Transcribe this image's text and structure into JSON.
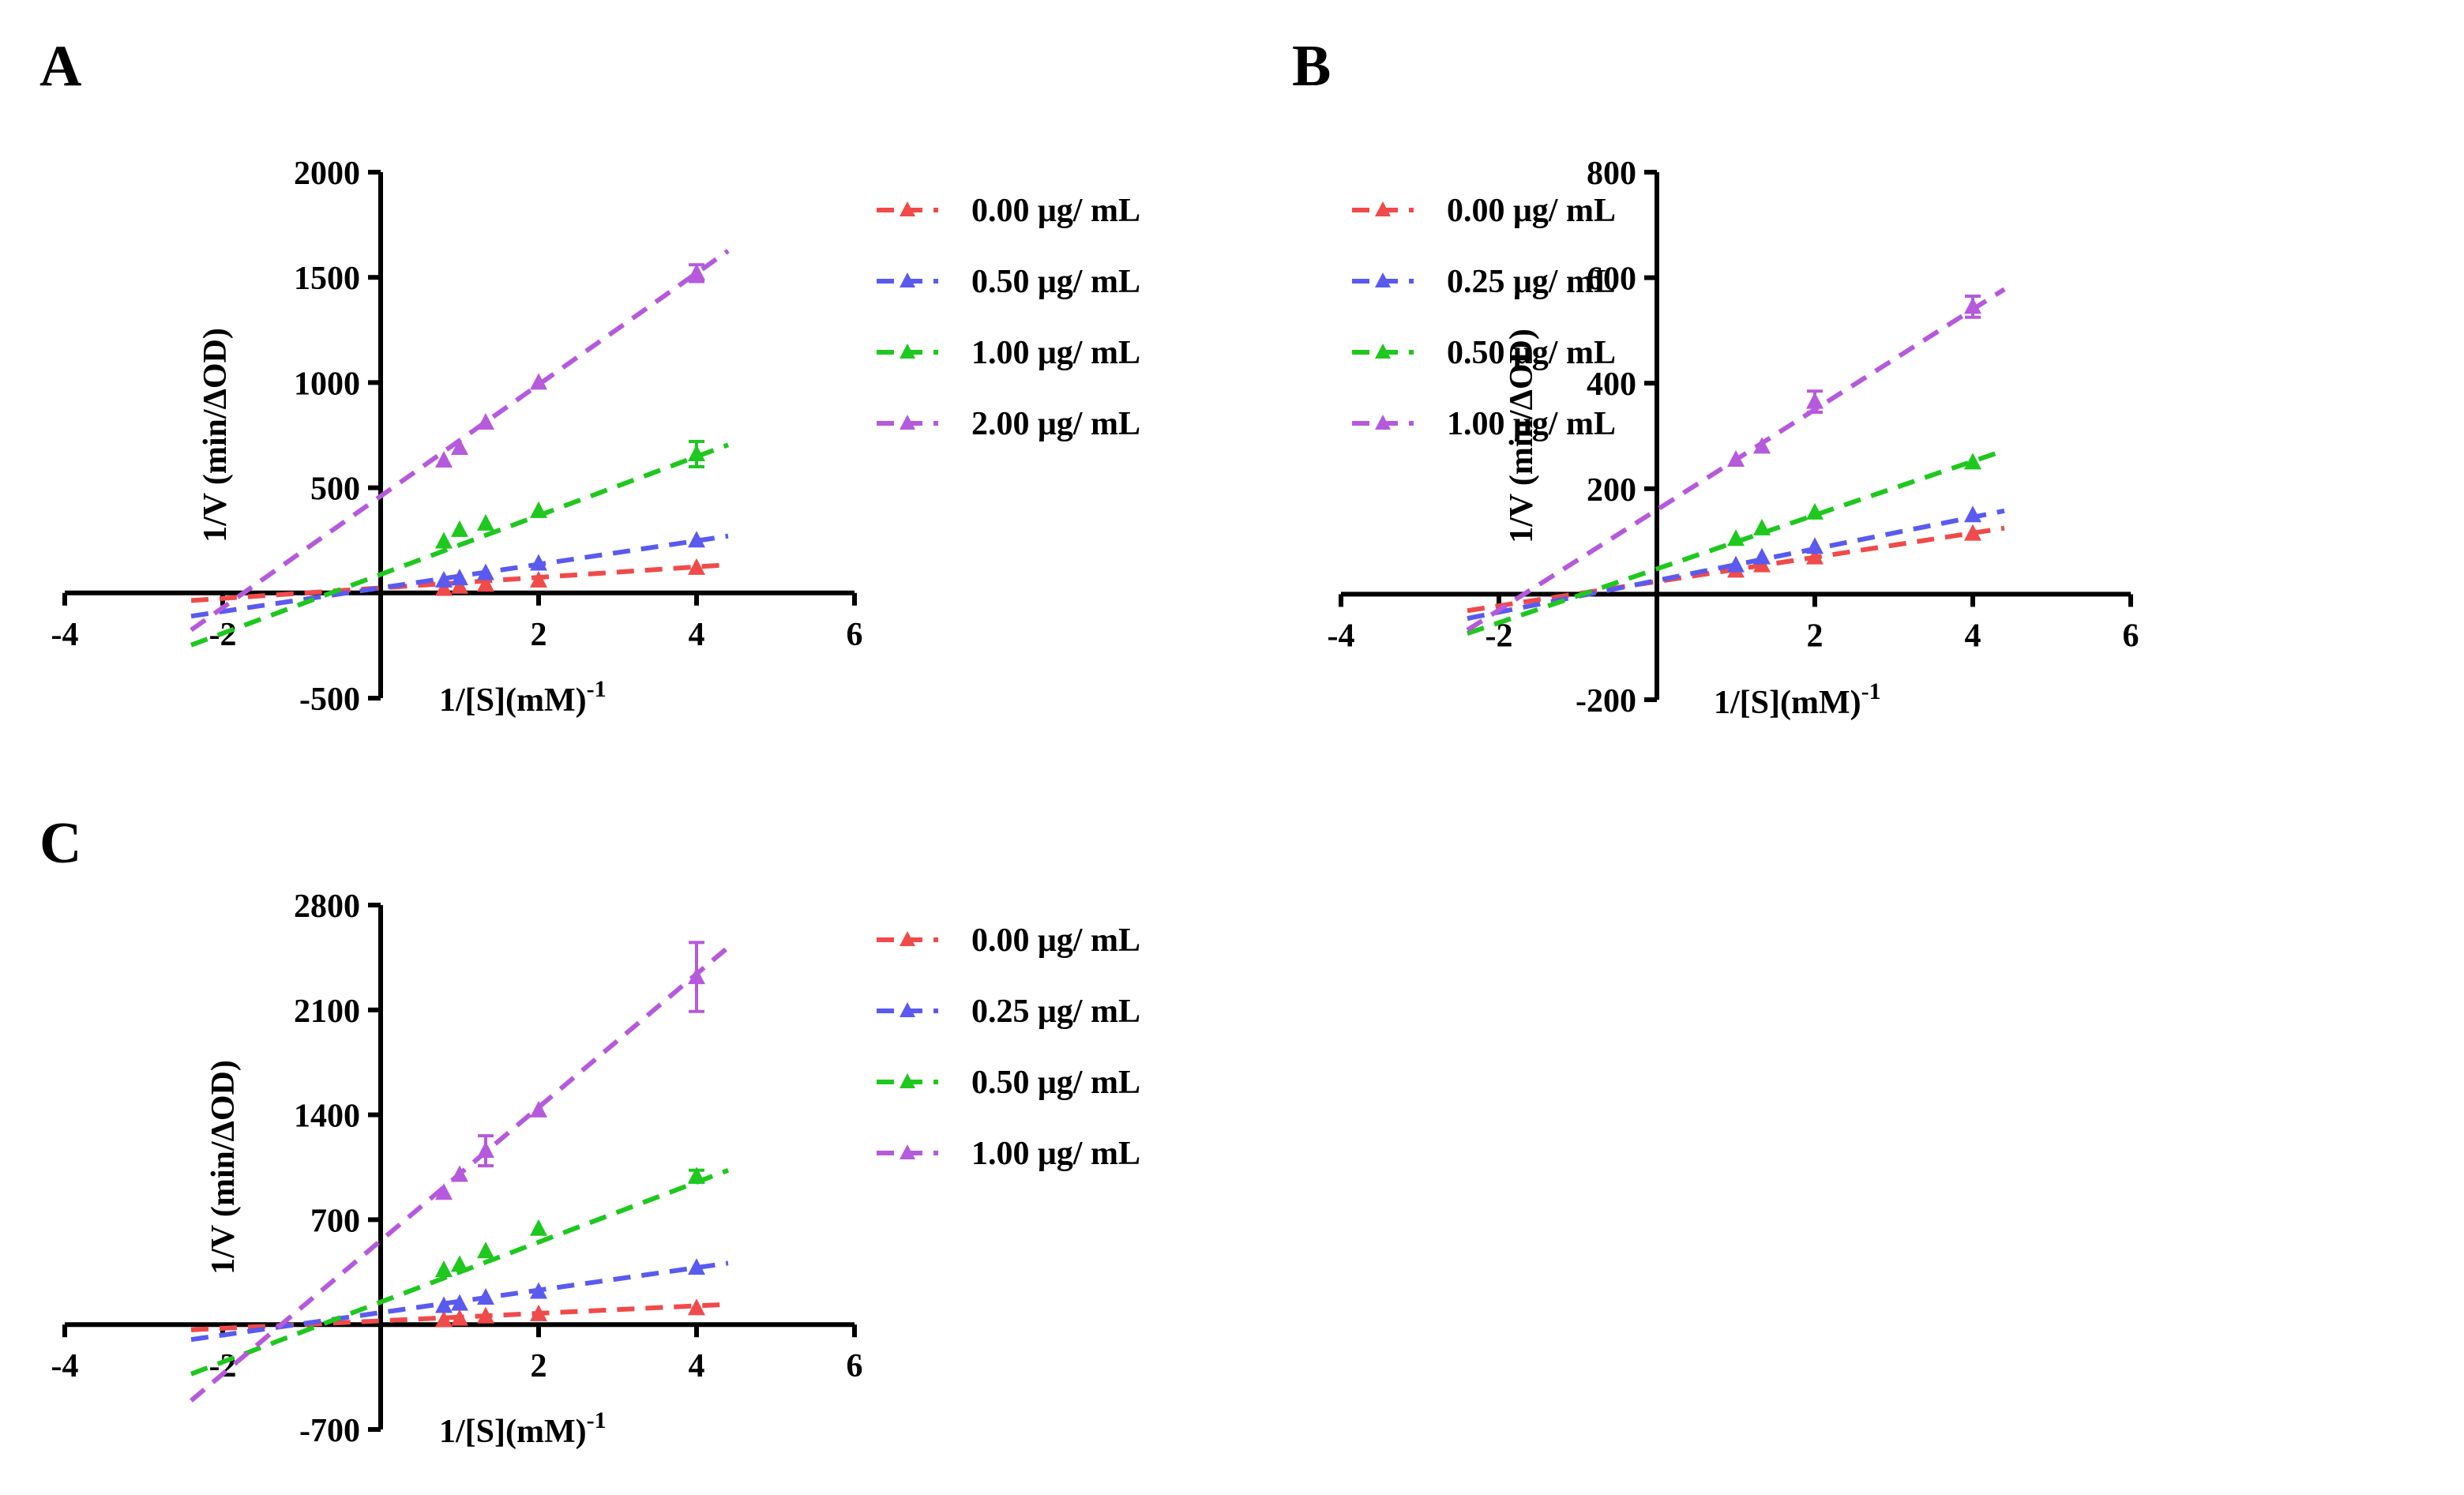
{
  "chart_data": [
    {
      "panel": "A",
      "type": "line",
      "xlabel": "1/[S](mM)",
      "xlabel_sup": "-1",
      "ylabel": "1/V (min/ΔOD)",
      "xlim": [
        -4,
        6
      ],
      "ylim": [
        -500,
        2000
      ],
      "xticks": [
        -4,
        -2,
        2,
        4,
        6
      ],
      "yticks": [
        -500,
        500,
        1000,
        1500,
        2000
      ],
      "yticklabels": [
        "-500",
        "500",
        "1000",
        "1500",
        "2000"
      ],
      "fit_range": [
        -2.4,
        4.4
      ],
      "series": [
        {
          "name": "0.00  μg/ mL",
          "color": "#f04a4a",
          "x": [
            0.8,
            1,
            1.33,
            2,
            4
          ],
          "y": [
            20,
            30,
            40,
            60,
            120
          ],
          "err": [
            0,
            0,
            0,
            0,
            0
          ],
          "slope": 25,
          "intercept": 24
        },
        {
          "name": "0.50  μg/ mL",
          "color": "#5a5af0",
          "x": [
            0.8,
            1,
            1.33,
            2,
            4
          ],
          "y": [
            60,
            70,
            95,
            140,
            250
          ],
          "err": [
            0,
            0,
            0,
            0,
            0
          ],
          "slope": 56,
          "intercept": 24
        },
        {
          "name": "1.00  μg/ mL",
          "color": "#1ec81e",
          "x": [
            0.8,
            1,
            1.33,
            2,
            4
          ],
          "y": [
            245,
            300,
            330,
            390,
            660
          ],
          "err": [
            0,
            0,
            0,
            0,
            60
          ],
          "slope": 140,
          "intercept": 88
        },
        {
          "name": "2.00 μg/ mL",
          "color": "#b55adc",
          "x": [
            0.8,
            1,
            1.33,
            2,
            4
          ],
          "y": [
            630,
            690,
            810,
            1000,
            1520
          ],
          "err": [
            0,
            0,
            0,
            0,
            40
          ],
          "slope": 265,
          "intercept": 460
        }
      ]
    },
    {
      "panel": "B",
      "type": "line",
      "xlabel": "1/[S](mM)",
      "xlabel_sup": "-1",
      "ylabel": "1/V (min/ΔOD)",
      "xlim": [
        -4,
        6
      ],
      "ylim": [
        -200,
        800
      ],
      "xticks": [
        -4,
        -2,
        2,
        4,
        6
      ],
      "yticks": [
        -200,
        200,
        400,
        600,
        800
      ],
      "yticklabels": [
        "-200",
        "200",
        "400",
        "600",
        "800"
      ],
      "fit_range": [
        -2.4,
        4.4
      ],
      "series": [
        {
          "name": "0.00 μg/ mL",
          "color": "#f04a4a",
          "x": [
            1,
            1.33,
            2,
            4
          ],
          "y": [
            45,
            55,
            70,
            115
          ],
          "err": [
            0,
            0,
            0,
            0
          ],
          "slope": 23,
          "intercept": 24
        },
        {
          "name": "0.25 μg/ mL",
          "color": "#5a5af0",
          "x": [
            1,
            1.33,
            2,
            4
          ],
          "y": [
            55,
            70,
            90,
            150
          ],
          "err": [
            0,
            0,
            0,
            0
          ],
          "slope": 30,
          "intercept": 26
        },
        {
          "name": "0.50 μg/ mL",
          "color": "#1ec81e",
          "x": [
            1,
            1.33,
            2,
            4
          ],
          "y": [
            105,
            125,
            155,
            250
          ],
          "err": [
            0,
            0,
            0,
            0
          ],
          "slope": 51,
          "intercept": 48
        },
        {
          "name": "1.00 μg/ mL",
          "color": "#b55adc",
          "x": [
            1,
            1.33,
            2,
            4
          ],
          "y": [
            255,
            280,
            365,
            545
          ],
          "err": [
            0,
            0,
            20,
            20
          ],
          "slope": 95,
          "intercept": 160
        }
      ]
    },
    {
      "panel": "C",
      "type": "line",
      "xlabel": "1/[S](mM)",
      "xlabel_sup": "-1",
      "ylabel": "1/V (min/ΔOD)",
      "xlim": [
        -4,
        6
      ],
      "ylim": [
        -700,
        2800
      ],
      "xticks": [
        -4,
        -2,
        2,
        4,
        6
      ],
      "yticks": [
        -700,
        700,
        1400,
        2100,
        2800
      ],
      "yticklabels": [
        "-700",
        "700",
        "1400",
        "2100",
        "2800"
      ],
      "fit_range": [
        -2.4,
        4.4
      ],
      "series": [
        {
          "name": "0.00 μg/ mL",
          "color": "#f04a4a",
          "x": [
            0.8,
            1,
            1.33,
            2,
            4
          ],
          "y": [
            30,
            40,
            55,
            70,
            110
          ],
          "err": [
            0,
            0,
            0,
            0,
            0
          ],
          "slope": 25,
          "intercept": 25
        },
        {
          "name": "0.25 μg/ mL",
          "color": "#5a5af0",
          "x": [
            0.8,
            1,
            1.33,
            2,
            4
          ],
          "y": [
            125,
            140,
            180,
            220,
            380
          ],
          "err": [
            0,
            0,
            0,
            0,
            0
          ],
          "slope": 75,
          "intercept": 80
        },
        {
          "name": "0.50 μg/ mL",
          "color": "#1ec81e",
          "x": [
            0.8,
            1,
            1.33,
            2,
            4
          ],
          "y": [
            365,
            400,
            490,
            640,
            990
          ],
          "err": [
            0,
            0,
            0,
            0,
            40
          ],
          "slope": 200,
          "intercept": 150
        },
        {
          "name": "1.00 μg/ mL",
          "color": "#b55adc",
          "x": [
            0.8,
            1,
            1.33,
            2,
            4
          ],
          "y": [
            880,
            1000,
            1160,
            1430,
            2320
          ],
          "err": [
            0,
            0,
            100,
            0,
            230
          ],
          "slope": 445,
          "intercept": 560
        }
      ]
    }
  ]
}
